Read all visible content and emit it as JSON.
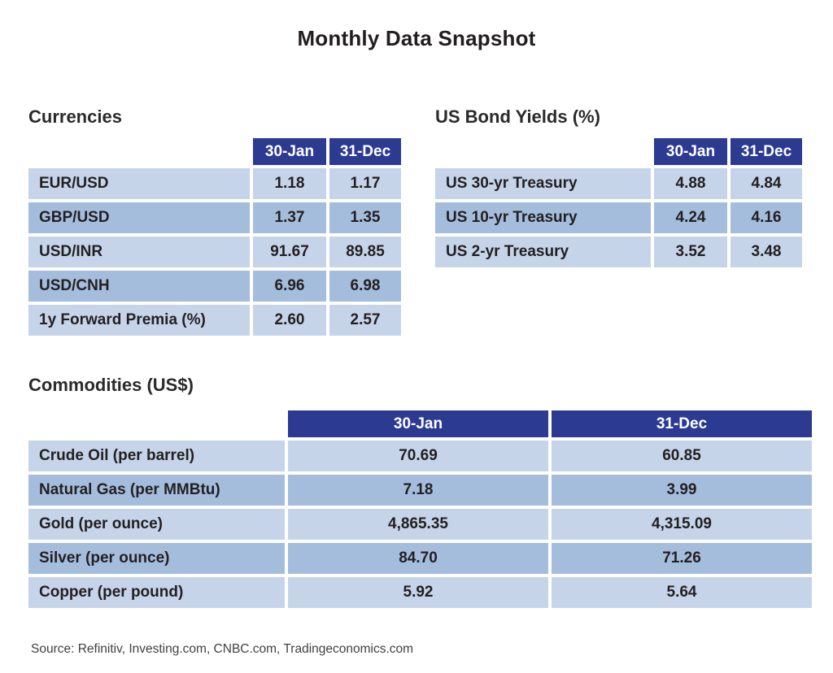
{
  "title": "Monthly Data Snapshot",
  "source_note": "Source: Refinitiv, Investing.com, CNBC.com, Tradingeconomics.com",
  "colors": {
    "header_bg": "#2d3a92",
    "row_light": "#c6d4ea",
    "row_dark": "#a5bddd",
    "header_text": "#ffffff",
    "body_text": "#231f20"
  },
  "chart_data": [
    {
      "type": "table",
      "title": "Currencies",
      "columns": [
        "",
        "30-Jan",
        "31-Dec"
      ],
      "rows": [
        [
          "EUR/USD",
          "1.18",
          "1.17"
        ],
        [
          "GBP/USD",
          "1.37",
          "1.35"
        ],
        [
          "USD/INR",
          "91.67",
          "89.85"
        ],
        [
          "USD/CNH",
          "6.96",
          "6.98"
        ],
        [
          "1y Forward Premia (%)",
          "2.60",
          "2.57"
        ]
      ]
    },
    {
      "type": "table",
      "title": "US Bond Yields (%)",
      "columns": [
        "",
        "30-Jan",
        "31-Dec"
      ],
      "rows": [
        [
          "US 30-yr Treasury",
          "4.88",
          "4.84"
        ],
        [
          "US 10-yr Treasury",
          "4.24",
          "4.16"
        ],
        [
          "US 2-yr Treasury",
          "3.52",
          "3.48"
        ]
      ]
    },
    {
      "type": "table",
      "title": "Commodities (US$)",
      "columns": [
        "",
        "30-Jan",
        "31-Dec"
      ],
      "rows": [
        [
          "Crude Oil (per barrel)",
          "70.69",
          "60.85"
        ],
        [
          "Natural Gas (per MMBtu)",
          "7.18",
          "3.99"
        ],
        [
          "Gold (per ounce)",
          "4,865.35",
          "4,315.09"
        ],
        [
          "Silver (per ounce)",
          "84.70",
          "71.26"
        ],
        [
          "Copper (per pound)",
          "5.92",
          "5.64"
        ]
      ]
    }
  ]
}
